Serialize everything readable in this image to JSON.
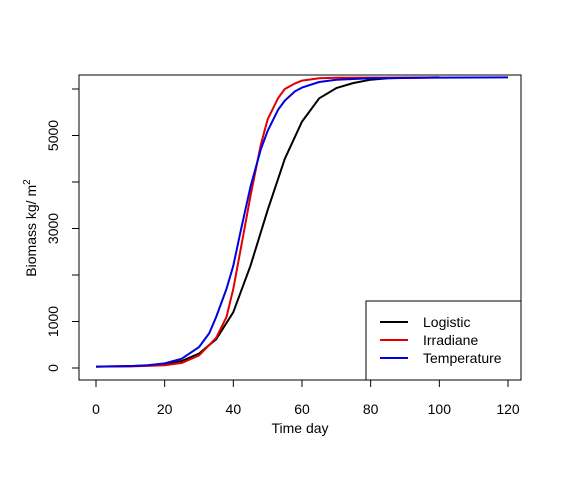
{
  "chart_data": {
    "type": "line",
    "title": "",
    "xlabel": "Time day",
    "ylabel_main": "Biomass kg/ m",
    "ylabel_sup": "2",
    "xlim": [
      0,
      120
    ],
    "ylim": [
      0,
      6000
    ],
    "xticks": [
      0,
      20,
      40,
      60,
      80,
      100,
      120
    ],
    "xtick_labels": [
      "0",
      "20",
      "40",
      "60",
      "80",
      "100",
      "120"
    ],
    "yticks": [
      0,
      1000,
      2000,
      3000,
      4000,
      5000,
      6000
    ],
    "ytick_labels": [
      "0",
      "1000",
      "",
      "3000",
      "",
      "5000",
      ""
    ],
    "grid": false,
    "legend_position": "bottom-right",
    "series": [
      {
        "name": "Logistic",
        "color": "#000000",
        "x": [
          0,
          10,
          15,
          20,
          25,
          30,
          35,
          40,
          45,
          50,
          55,
          60,
          65,
          70,
          75,
          80,
          85,
          90,
          100
        ],
        "y": [
          30,
          40,
          55,
          80,
          150,
          310,
          620,
          1200,
          2200,
          3400,
          4500,
          5300,
          5800,
          6020,
          6130,
          6200,
          6230,
          6240,
          6250
        ]
      },
      {
        "name": "Irradiane",
        "color": "#e00000",
        "x": [
          0,
          10,
          15,
          20,
          25,
          30,
          35,
          38,
          40,
          42,
          45,
          48,
          50,
          53,
          55,
          58,
          60,
          65,
          70,
          80,
          100
        ],
        "y": [
          30,
          35,
          45,
          60,
          110,
          270,
          650,
          1100,
          1700,
          2500,
          3700,
          4800,
          5350,
          5800,
          6000,
          6120,
          6180,
          6230,
          6240,
          6245,
          6250
        ]
      },
      {
        "name": "Temperature",
        "color": "#0000e0",
        "x": [
          0,
          10,
          15,
          20,
          25,
          30,
          33,
          35,
          38,
          40,
          42,
          45,
          48,
          50,
          53,
          55,
          58,
          60,
          65,
          70,
          80,
          100,
          120
        ],
        "y": [
          30,
          40,
          60,
          100,
          200,
          450,
          750,
          1100,
          1700,
          2200,
          2900,
          3900,
          4700,
          5100,
          5550,
          5750,
          5950,
          6030,
          6150,
          6200,
          6230,
          6245,
          6250
        ]
      }
    ]
  }
}
